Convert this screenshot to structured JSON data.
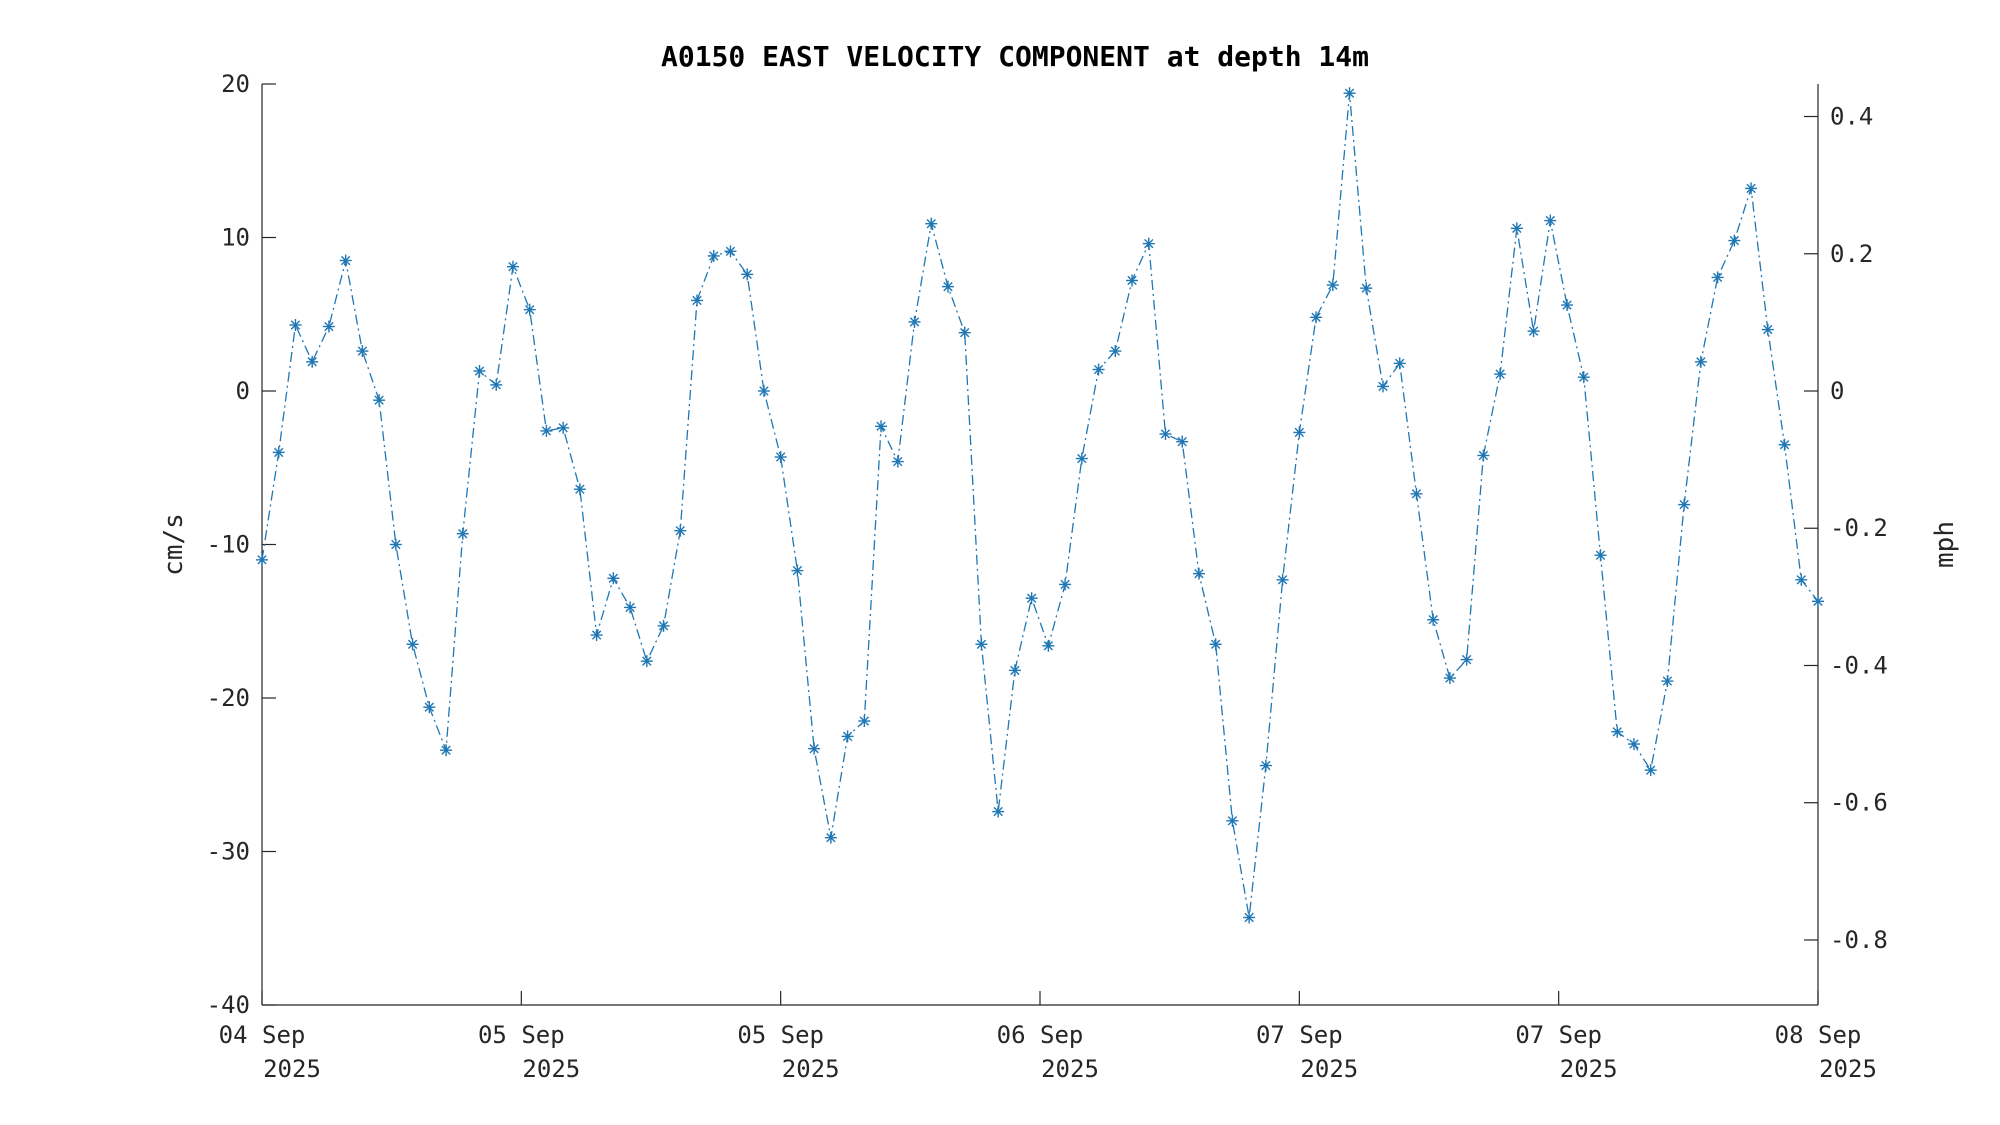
{
  "chart_data": {
    "type": "line",
    "title": "A0150 EAST VELOCITY COMPONENT at depth 14m",
    "ylabel": "cm/s",
    "ylabel_right": "mph",
    "ylim": [
      -40,
      20
    ],
    "y_ticks": [
      "-40",
      "-30",
      "-20",
      "-10",
      "0",
      "10",
      "20"
    ],
    "y2_ticks": [
      "-0.8",
      "-0.6",
      "-0.4",
      "-0.2",
      "0",
      "0.2",
      "0.4"
    ],
    "xlim_hours": [
      0,
      96
    ],
    "x_tick_labels": [
      {
        "hour": 0,
        "line1": "04 Sep",
        "line2": "2025"
      },
      {
        "hour": 16,
        "line1": "05 Sep",
        "line2": "2025"
      },
      {
        "hour": 32,
        "line1": "05 Sep",
        "line2": "2025"
      },
      {
        "hour": 48,
        "line1": "06 Sep",
        "line2": "2025"
      },
      {
        "hour": 64,
        "line1": "07 Sep",
        "line2": "2025"
      },
      {
        "hour": 80,
        "line1": "07 Sep",
        "line2": "2025"
      },
      {
        "hour": 96,
        "line1": "08 Sep",
        "line2": "2025"
      }
    ],
    "line_style": "dash-dot",
    "marker": "asterisk",
    "color": "#1f77b4",
    "series": [
      {
        "values": [
          -11.0,
          -4.0,
          4.3,
          1.9,
          4.2,
          8.5,
          2.6,
          -0.6,
          -10.0,
          -16.5,
          -20.6,
          -23.4,
          -9.3,
          1.3,
          0.4,
          8.1,
          5.3,
          -2.6,
          -2.4,
          -6.4,
          -15.9,
          -12.2,
          -14.1,
          -17.6,
          -15.3,
          -9.1,
          5.9,
          8.8,
          9.1,
          7.6,
          0.0,
          -4.3,
          -11.7,
          -23.3,
          -29.1,
          -22.5,
          -21.5,
          -2.3,
          -4.6,
          4.5,
          10.9,
          6.8,
          3.8,
          -16.5,
          -27.4,
          -18.2,
          -13.5,
          -16.6,
          -12.6,
          -4.4,
          1.4,
          2.6,
          7.2,
          9.6,
          -2.8,
          -3.3,
          -11.9,
          -16.5,
          -28.0,
          -34.3,
          -24.4,
          -12.3,
          -2.7,
          4.8,
          6.9,
          19.4,
          6.7,
          0.3,
          1.8,
          -6.7,
          -14.9,
          -18.7,
          -17.5,
          -4.2,
          1.1,
          10.6,
          3.9,
          11.1,
          5.6,
          0.9,
          -10.7,
          -22.2,
          -23.0,
          -24.7,
          -18.9,
          -7.4,
          1.9,
          7.4,
          9.8,
          13.2,
          4.0,
          -3.5,
          -12.3,
          -13.7
        ]
      }
    ]
  }
}
